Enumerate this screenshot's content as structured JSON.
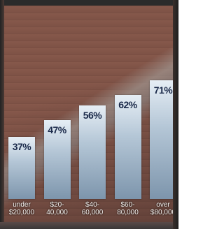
{
  "chart_data": {
    "type": "bar",
    "categories": [
      "under $20,000",
      "$20-40,000",
      "$40-60,000",
      "$60-80,000",
      "over $80,000"
    ],
    "values": [
      37,
      47,
      56,
      62,
      71
    ],
    "value_labels": [
      "37%",
      "47%",
      "56%",
      "62%",
      "71%"
    ]
  }
}
